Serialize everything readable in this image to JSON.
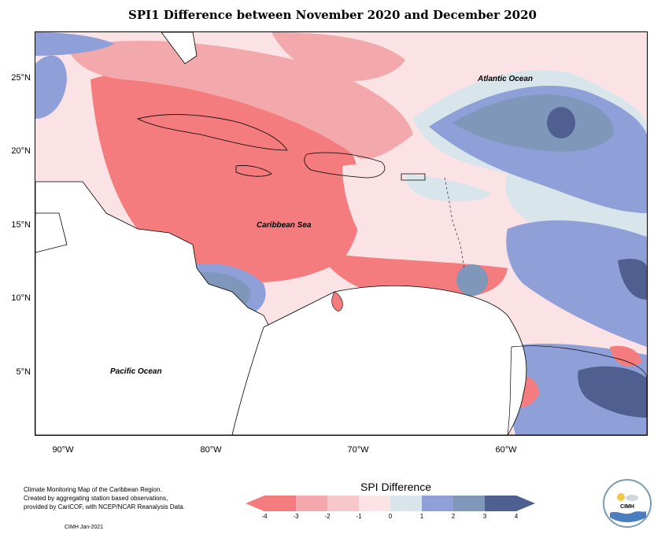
{
  "title": "SPI1 Difference between November 2020 and December 2020",
  "map": {
    "latitude_ticks": [
      "25°N",
      "20°N",
      "15°N",
      "10°N",
      "5°N"
    ],
    "longitude_ticks": [
      "90°W",
      "80°W",
      "70°W",
      "60°W"
    ],
    "labels": {
      "atlantic": "Atlantic Ocean",
      "caribbean": "Caribbean Sea",
      "pacific": "Pacific Ocean"
    },
    "field_colors": {
      "minus4": "#f47c7f",
      "minus3": "#f3a9ab",
      "minus2": "#f7c8ca",
      "minus1": "#fbe3e5",
      "plus0": "#d8e6ec",
      "plus1": "#8f9fd8",
      "plus2": "#7f97b8",
      "plus3": "#4f5f8f",
      "land": "#ffffff"
    }
  },
  "legend": {
    "title": "SPI Difference",
    "ticks": [
      "-4",
      "-3",
      "-2",
      "-1",
      "0",
      "1",
      "2",
      "3",
      "4"
    ],
    "colors": [
      "#f47c7f",
      "#f3a9ab",
      "#f7c8ca",
      "#fbe3e5",
      "#d8e6ec",
      "#8f9fd8",
      "#7f97b8",
      "#4f5f8f"
    ]
  },
  "credits": {
    "line1": "Climate Monitoring Map of the Caribbean Region.",
    "line2": "Created by aggregating station based observations,",
    "line3": "provided by CariCOF, with NCEP/NCAR Reanalysis Data.",
    "date": "CIMH Jan-2021"
  },
  "logo": {
    "text": "CIMH"
  }
}
